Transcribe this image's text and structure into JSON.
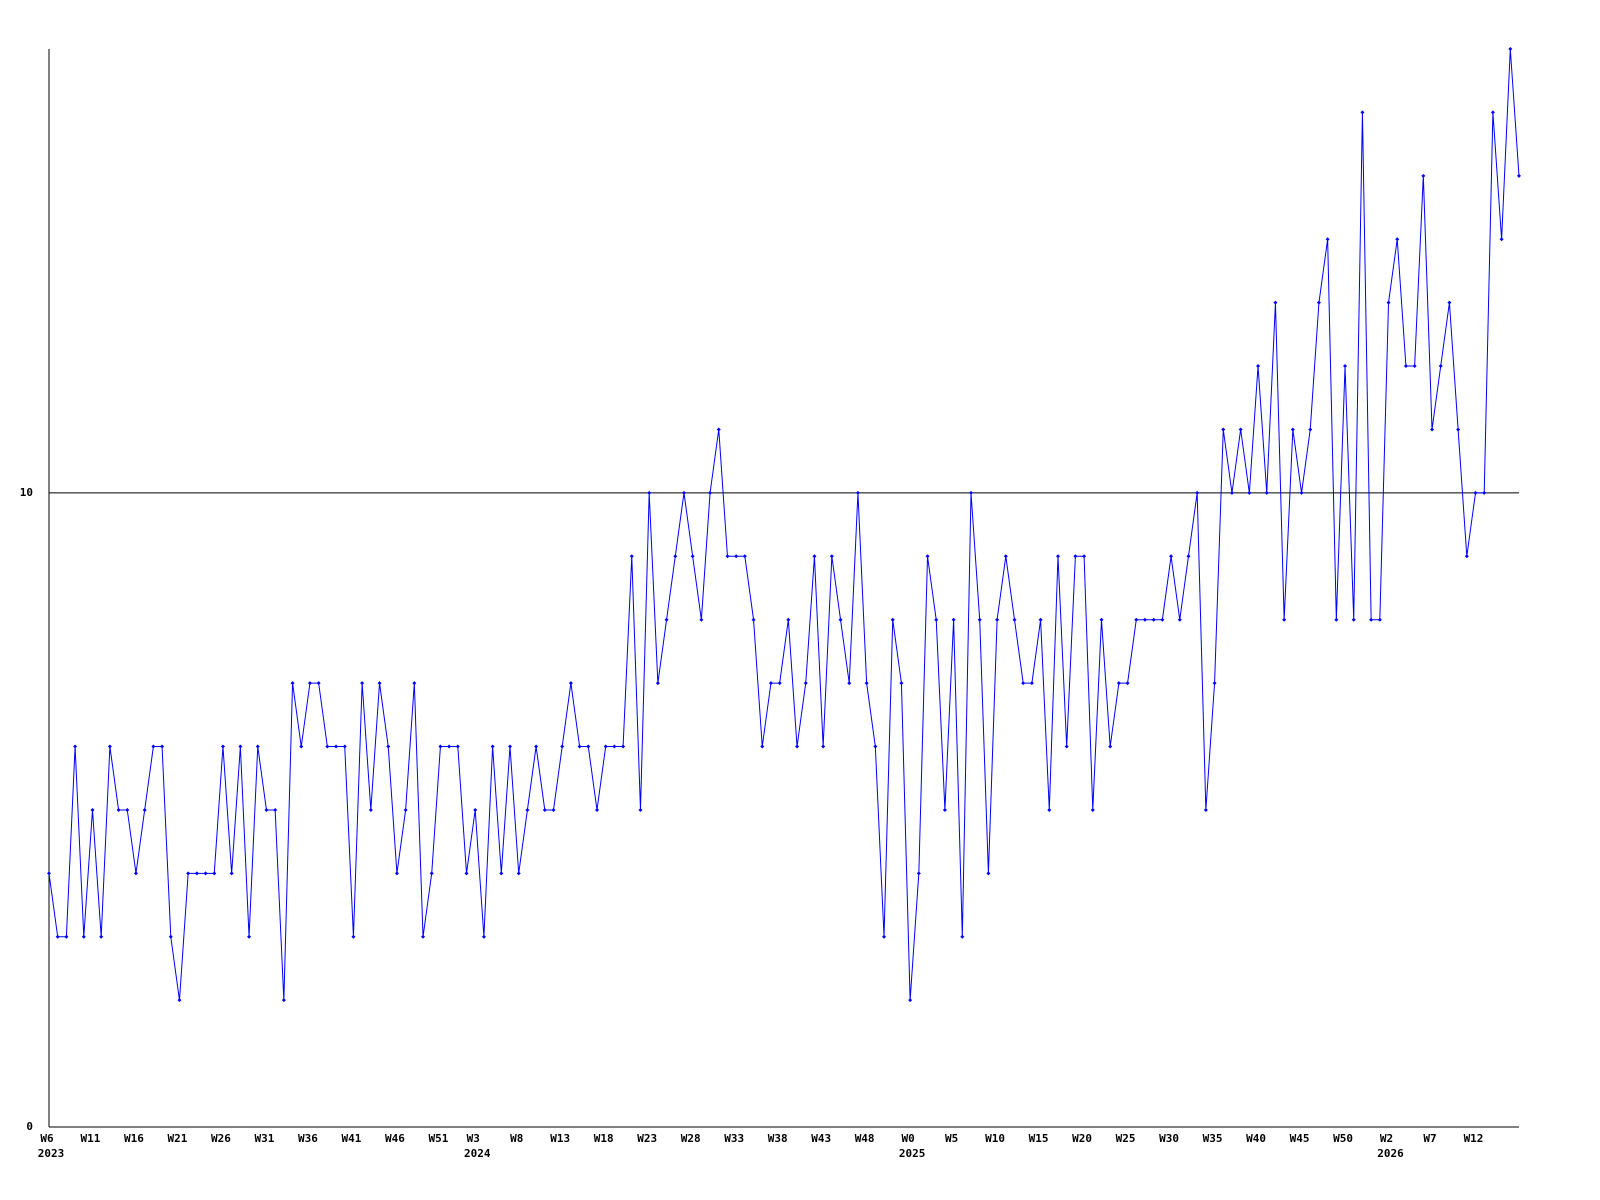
{
  "chart_data": {
    "type": "line",
    "categories": [
      "W6",
      null,
      null,
      null,
      null,
      "W11",
      null,
      null,
      null,
      null,
      "W16",
      null,
      null,
      null,
      null,
      "W21",
      null,
      null,
      null,
      null,
      "W26",
      null,
      null,
      null,
      null,
      "W31",
      null,
      null,
      null,
      null,
      "W36",
      null,
      null,
      null,
      null,
      "W41",
      null,
      null,
      null,
      null,
      "W46",
      null,
      null,
      null,
      null,
      "W51",
      null,
      null,
      null,
      "W3",
      null,
      null,
      null,
      null,
      "W8",
      null,
      null,
      null,
      null,
      "W13",
      null,
      null,
      null,
      null,
      "W18",
      null,
      null,
      null,
      null,
      "W23",
      null,
      null,
      null,
      null,
      "W28",
      null,
      null,
      null,
      null,
      "W33",
      null,
      null,
      null,
      null,
      "W38",
      null,
      null,
      null,
      null,
      "W43",
      null,
      null,
      null,
      null,
      "W48",
      null,
      null,
      null,
      null,
      "W0",
      null,
      null,
      null,
      null,
      "W5",
      null,
      null,
      null,
      null,
      "W10",
      null,
      null,
      null,
      null,
      "W15",
      null,
      null,
      null,
      null,
      "W20",
      null,
      null,
      null,
      null,
      "W25",
      null,
      null,
      null,
      null,
      "W30",
      null,
      null,
      null,
      null,
      "W35",
      null,
      null,
      null,
      null,
      "W40",
      null,
      null,
      null,
      null,
      "W45",
      null,
      null,
      null,
      null,
      "W50",
      null,
      null,
      null,
      null,
      "W2",
      null,
      null,
      null,
      null,
      "W7",
      null,
      null,
      null,
      null,
      "W12",
      null,
      null,
      null,
      null,
      null
    ],
    "category_years": [
      "2023",
      null,
      null,
      null,
      null,
      null,
      null,
      null,
      null,
      null,
      null,
      null,
      null,
      null,
      null,
      null,
      null,
      null,
      null,
      null,
      null,
      null,
      null,
      null,
      null,
      null,
      null,
      null,
      null,
      null,
      null,
      null,
      null,
      null,
      null,
      null,
      null,
      null,
      null,
      null,
      null,
      null,
      null,
      null,
      null,
      null,
      null,
      null,
      null,
      "2024",
      null,
      null,
      null,
      null,
      null,
      null,
      null,
      null,
      null,
      null,
      null,
      null,
      null,
      null,
      null,
      null,
      null,
      null,
      null,
      null,
      null,
      null,
      null,
      null,
      null,
      null,
      null,
      null,
      null,
      null,
      null,
      null,
      null,
      null,
      null,
      null,
      null,
      null,
      null,
      null,
      null,
      null,
      null,
      null,
      null,
      null,
      null,
      null,
      null,
      "2025",
      null,
      null,
      null,
      null,
      null,
      null,
      null,
      null,
      null,
      null,
      null,
      null,
      null,
      null,
      null,
      null,
      null,
      null,
      null,
      null,
      null,
      null,
      null,
      null,
      null,
      null,
      null,
      null,
      null,
      null,
      null,
      null,
      null,
      null,
      null,
      null,
      null,
      null,
      null,
      null,
      null,
      null,
      null,
      null,
      null,
      null,
      null,
      null,
      null,
      null,
      null,
      null,
      null,
      null,
      "2026",
      null,
      null,
      null,
      null,
      null,
      null,
      null,
      null,
      null,
      null,
      null,
      null,
      null,
      null,
      null
    ],
    "series": [
      {
        "color": "#0000ff",
        "values": [
          4,
          3,
          3,
          6,
          3,
          5,
          3,
          6,
          5,
          5,
          4,
          5,
          6,
          6,
          3,
          2,
          4,
          4,
          4,
          4,
          6,
          4,
          6,
          3,
          6,
          5,
          5,
          2,
          7,
          6,
          7,
          7,
          6,
          6,
          6,
          3,
          7,
          5,
          7,
          6,
          4,
          5,
          7,
          3,
          4,
          6,
          6,
          6,
          4,
          5,
          3,
          6,
          4,
          6,
          4,
          5,
          6,
          5,
          5,
          6,
          7,
          6,
          6,
          5,
          6,
          6,
          6,
          9,
          5,
          10,
          7,
          8,
          9,
          10,
          9,
          8,
          10,
          11,
          9,
          9,
          9,
          8,
          6,
          7,
          7,
          8,
          6,
          7,
          9,
          6,
          9,
          8,
          7,
          10,
          7,
          6,
          3,
          8,
          7,
          2,
          4,
          9,
          8,
          5,
          8,
          3,
          10,
          8,
          4,
          8,
          9,
          8,
          7,
          7,
          8,
          5,
          9,
          6,
          9,
          9,
          5,
          8,
          6,
          7,
          7,
          8,
          8,
          8,
          8,
          9,
          8,
          9,
          10,
          5,
          7,
          11,
          10,
          11,
          10,
          12,
          10,
          13,
          8,
          11,
          10,
          11,
          13,
          14,
          8,
          12,
          8,
          16,
          8,
          8,
          13,
          14,
          12,
          12,
          15,
          11,
          12,
          13,
          11,
          9,
          10,
          10,
          16,
          14,
          17,
          15
        ]
      }
    ],
    "ylim": [
      0,
      17
    ],
    "yticks": [
      0,
      10
    ],
    "grid": true
  }
}
